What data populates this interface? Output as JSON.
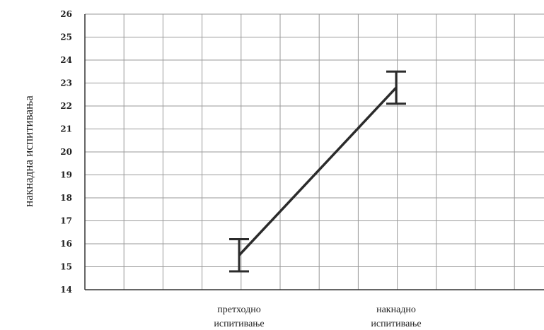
{
  "chart_data": {
    "type": "line",
    "title": "",
    "xlabel": "",
    "ylabel": "накнадна испитивања",
    "categories": [
      [
        "претходно",
        "испитивање"
      ],
      [
        "накнадно",
        "испитивање"
      ]
    ],
    "series": [
      {
        "values": [
          15.5,
          22.8
        ],
        "error_low": [
          14.8,
          22.1
        ],
        "error_high": [
          16.2,
          23.5
        ]
      }
    ],
    "ylim": [
      14,
      26
    ],
    "yticks": [
      "14",
      "15",
      "16",
      "17",
      "18",
      "19",
      "20",
      "21",
      "22",
      "23",
      "24",
      "25",
      "26"
    ],
    "grid": true,
    "legend": "none"
  }
}
